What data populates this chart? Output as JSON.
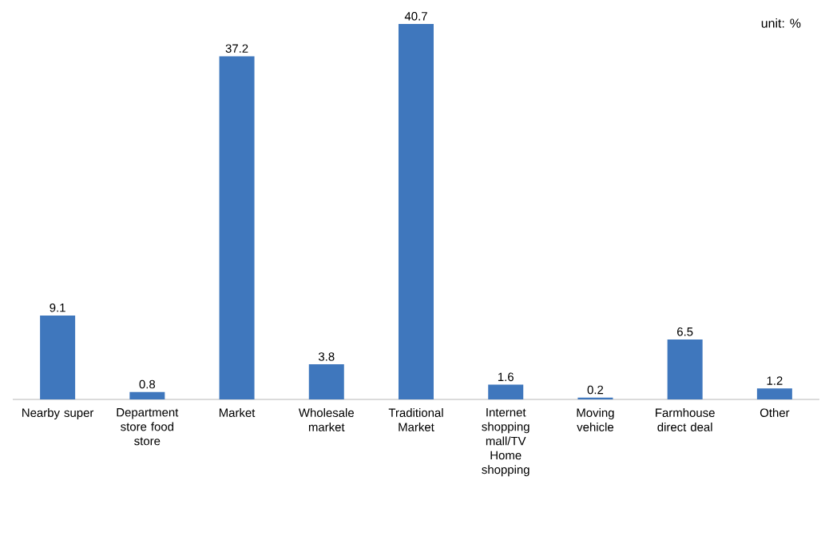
{
  "chart_data": {
    "type": "bar",
    "categories": [
      "Nearby super",
      "Department store food store",
      "Market",
      "Wholesale market",
      "Traditional Market",
      "Internet shopping mall/TV Home shopping",
      "Moving vehicle",
      "Farmhouse direct deal",
      "Other"
    ],
    "values": [
      9.1,
      0.8,
      37.2,
      3.8,
      40.7,
      1.6,
      0.2,
      6.5,
      1.2
    ],
    "color": "#3f77bd",
    "data_labels": true,
    "annotations": [
      "unit: %"
    ]
  }
}
